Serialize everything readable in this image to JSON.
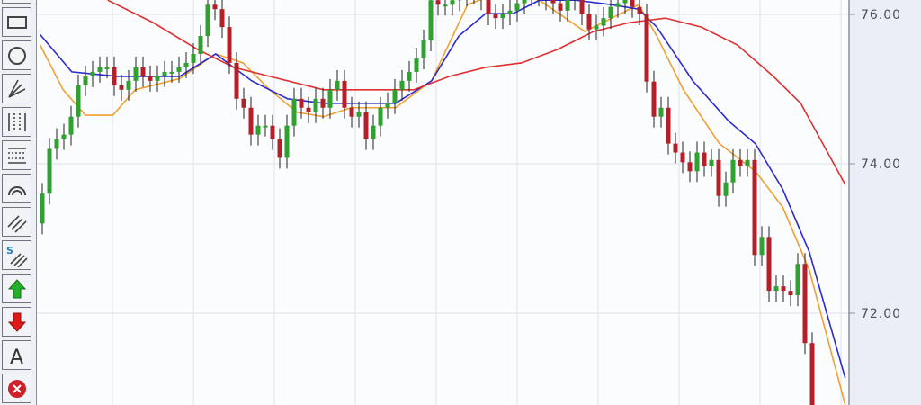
{
  "toolbar": {
    "tools": [
      {
        "name": "pointer-tool",
        "icon": "pointer-icon"
      },
      {
        "name": "rectangle-tool",
        "icon": "rectangle-icon"
      },
      {
        "name": "ellipse-tool",
        "icon": "circle-icon"
      },
      {
        "name": "fan-tool",
        "icon": "fan-lines-icon"
      },
      {
        "name": "vertical-grid-tool",
        "icon": "vertical-dotted-lines-icon"
      },
      {
        "name": "horizontal-grid-tool",
        "icon": "horizontal-dotted-lines-icon"
      },
      {
        "name": "arc-tool",
        "icon": "arc-icon"
      },
      {
        "name": "parallel-channel-tool",
        "icon": "parallel-lines-icon"
      },
      {
        "name": "s-channel-tool",
        "icon": "s-parallel-lines-icon",
        "label": "S"
      },
      {
        "name": "buy-arrow-tool",
        "icon": "green-up-arrow-icon"
      },
      {
        "name": "sell-arrow-tool",
        "icon": "red-down-arrow-icon"
      },
      {
        "name": "text-tool",
        "icon": "text-a-icon",
        "label": "A"
      },
      {
        "name": "delete-tool",
        "icon": "red-x-circle-icon"
      }
    ]
  },
  "chart_data": {
    "type": "candlestick",
    "ylim": [
      70.6,
      76.2
    ],
    "yticks": [
      "76.00",
      "74.00",
      "72.00"
    ],
    "ytick_values": [
      76,
      74,
      72
    ],
    "grid": true,
    "colors": {
      "up": "#2ea12e",
      "down": "#b3202a",
      "ma_fast": "#f0a030",
      "ma_mid": "#2b2bd0",
      "ma_slow": "#e03030"
    },
    "first_open": 73.2,
    "closes": [
      73.6,
      74.2,
      74.33,
      74.39,
      74.63,
      75.05,
      75.17,
      75.23,
      75.29,
      75.29,
      75.05,
      74.99,
      75.11,
      75.29,
      75.17,
      75.11,
      75.17,
      75.23,
      75.23,
      75.29,
      75.35,
      75.47,
      75.71,
      76.13,
      76.07,
      75.83,
      75.35,
      74.87,
      74.75,
      74.39,
      74.51,
      74.51,
      74.33,
      74.08,
      74.51,
      74.87,
      74.75,
      74.69,
      74.87,
      74.75,
      74.99,
      75.11,
      74.75,
      74.63,
      74.69,
      74.33,
      74.51,
      74.75,
      74.81,
      74.99,
      75.11,
      75.23,
      75.41,
      75.65,
      76.19,
      76.13,
      76.13,
      76.19,
      76.25,
      76.3,
      76.28,
      76.2,
      76.0,
      75.95,
      76.0,
      76.05,
      76.15,
      76.25,
      76.3,
      76.25,
      76.2,
      76.15,
      76.05,
      76.2,
      76.25,
      76.0,
      75.8,
      75.85,
      75.95,
      76.1,
      76.15,
      76.2,
      76.1,
      76.0,
      75.1,
      74.63,
      74.75,
      74.27,
      74.15,
      74.02,
      73.9,
      74.15,
      73.97,
      74.05,
      73.57,
      73.75,
      74.05,
      73.97,
      74.05,
      72.78,
      73.02,
      72.3,
      72.36,
      72.3,
      72.24,
      72.66,
      71.6,
      70.7
    ],
    "series": [
      {
        "key": "ma_fast",
        "points": [
          [
            -0.3,
            75.59
          ],
          [
            2.9,
            74.99
          ],
          [
            6,
            74.65
          ],
          [
            9.8,
            74.65
          ],
          [
            12.9,
            74.99
          ],
          [
            19.1,
            75.14
          ],
          [
            24.1,
            75.47
          ],
          [
            27.9,
            75.35
          ],
          [
            31.6,
            74.99
          ],
          [
            35.4,
            74.69
          ],
          [
            39.1,
            74.63
          ],
          [
            42.9,
            74.75
          ],
          [
            49.1,
            74.75
          ],
          [
            54.1,
            75.11
          ],
          [
            59.1,
            76.13
          ],
          [
            64.1,
            76.31
          ],
          [
            69.1,
            76.19
          ],
          [
            75.4,
            75.77
          ],
          [
            80.4,
            76.01
          ],
          [
            82.9,
            76.13
          ],
          [
            85.4,
            75.71
          ],
          [
            89.1,
            74.99
          ],
          [
            94.1,
            74.27
          ],
          [
            99.1,
            73.9
          ],
          [
            102.9,
            73.42
          ],
          [
            106.6,
            72.58
          ],
          [
            111.6,
            70.77
          ]
        ]
      },
      {
        "key": "ma_mid",
        "points": [
          [
            -0.3,
            75.73
          ],
          [
            4.1,
            75.23
          ],
          [
            10.4,
            75.17
          ],
          [
            19.1,
            75.17
          ],
          [
            24.1,
            75.47
          ],
          [
            29.1,
            75.11
          ],
          [
            34.1,
            74.87
          ],
          [
            39.1,
            74.81
          ],
          [
            44.1,
            74.81
          ],
          [
            49.1,
            74.81
          ],
          [
            54.1,
            75.11
          ],
          [
            57.9,
            75.71
          ],
          [
            61.6,
            76.01
          ],
          [
            65.4,
            76.01
          ],
          [
            69.1,
            76.19
          ],
          [
            74.1,
            76.19
          ],
          [
            79.1,
            76.13
          ],
          [
            82.9,
            76.07
          ],
          [
            85.4,
            75.83
          ],
          [
            90.4,
            75.11
          ],
          [
            95.4,
            74.57
          ],
          [
            99.1,
            74.27
          ],
          [
            102.9,
            73.66
          ],
          [
            106.6,
            72.82
          ],
          [
            111.6,
            71.13
          ]
        ]
      },
      {
        "key": "ma_slow",
        "points": [
          [
            9.1,
            76.19
          ],
          [
            15.4,
            75.89
          ],
          [
            21.6,
            75.53
          ],
          [
            26.6,
            75.29
          ],
          [
            31.6,
            75.17
          ],
          [
            39.1,
            74.99
          ],
          [
            46.6,
            74.99
          ],
          [
            51.6,
            74.99
          ],
          [
            56.6,
            75.17
          ],
          [
            61.6,
            75.29
          ],
          [
            66.6,
            75.35
          ],
          [
            71.6,
            75.53
          ],
          [
            76.6,
            75.77
          ],
          [
            81.6,
            75.89
          ],
          [
            86.6,
            75.95
          ],
          [
            91.6,
            75.83
          ],
          [
            96.6,
            75.59
          ],
          [
            101.6,
            75.17
          ],
          [
            105.4,
            74.81
          ],
          [
            111.6,
            73.72
          ]
        ]
      }
    ]
  }
}
